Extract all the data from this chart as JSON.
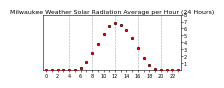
{
  "title": "Milwaukee Weather Solar Radiation Average per Hour (24 Hours)",
  "x_values": [
    0,
    1,
    2,
    3,
    4,
    5,
    6,
    7,
    8,
    9,
    10,
    11,
    12,
    13,
    14,
    15,
    16,
    17,
    18,
    19,
    20,
    21,
    22,
    23
  ],
  "y_values": [
    0,
    0,
    0,
    0,
    0,
    0.05,
    0.3,
    1.2,
    2.5,
    3.8,
    5.2,
    6.3,
    6.8,
    6.5,
    5.8,
    4.6,
    3.2,
    1.8,
    0.8,
    0.15,
    0.02,
    0,
    0,
    0
  ],
  "dot_color": "#ff0000",
  "bg_color": "#ffffff",
  "grid_color": "#aaaaaa",
  "tick_color": "#000000",
  "ylim": [
    0,
    8
  ],
  "xlim": [
    -0.5,
    23.5
  ],
  "yticks": [
    1,
    2,
    3,
    4,
    5,
    6,
    7,
    8
  ],
  "xtick_positions": [
    0,
    1,
    2,
    3,
    4,
    5,
    6,
    7,
    8,
    9,
    10,
    11,
    12,
    13,
    14,
    15,
    16,
    17,
    18,
    19,
    20,
    21,
    22,
    23
  ],
  "xtick_labels": [
    "0",
    "",
    "2",
    "",
    "4",
    "",
    "6",
    "",
    "8",
    "",
    "10",
    "",
    "12",
    "",
    "14",
    "",
    "16",
    "",
    "18",
    "",
    "20",
    "",
    "22",
    ""
  ],
  "vgrid_positions": [
    4,
    8,
    12,
    16,
    20
  ],
  "title_fontsize": 4.5,
  "tick_fontsize": 3.5,
  "dot_size": 2.5,
  "dot_size_black": 5
}
